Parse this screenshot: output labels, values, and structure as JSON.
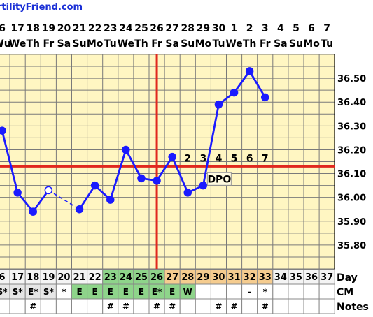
{
  "site": "rtilityFriend.com",
  "chart_data": {
    "type": "line",
    "ylim": [
      35.7,
      36.6
    ],
    "yticks": [
      "35.80",
      "35.90",
      "36.00",
      "36.10",
      "36.20",
      "36.30",
      "36.40",
      "36.50"
    ],
    "dates": [
      "6",
      "17",
      "18",
      "19",
      "20",
      "21",
      "22",
      "23",
      "24",
      "25",
      "26",
      "27",
      "28",
      "29",
      "30",
      "1",
      "2",
      "3",
      "4",
      "5",
      "6",
      "7"
    ],
    "weekdays": [
      "Wu",
      "We",
      "Th",
      "Fr",
      "Sa",
      "Su",
      "Mo",
      "Tu",
      "We",
      "Th",
      "Fr",
      "Sa",
      "Su",
      "Mo",
      "Tu",
      "We",
      "Th",
      "Fr",
      "Sa",
      "Su",
      "Mo",
      "Tu"
    ],
    "cycle_days": [
      "6",
      "17",
      "18",
      "19",
      "20",
      "21",
      "22",
      "23",
      "24",
      "25",
      "26",
      "27",
      "28",
      "29",
      "30",
      "31",
      "32",
      "33",
      "34",
      "35",
      "36",
      "37"
    ],
    "cycle_day_label": "Day",
    "temps": [
      36.28,
      36.02,
      35.94,
      36.03,
      null,
      35.95,
      36.05,
      35.99,
      36.2,
      36.08,
      36.07,
      36.17,
      36.02,
      36.05,
      36.39,
      36.44,
      36.53,
      36.42,
      null,
      null,
      null,
      null
    ],
    "open_points": [
      3
    ],
    "dashed_segments": [
      [
        3,
        5
      ]
    ],
    "coverline": 36.13,
    "ovulation_index": 10,
    "dpo_numbers": [
      "2",
      "3",
      "4",
      "5",
      "6",
      "7"
    ],
    "dpo_start_index": 12,
    "dpo_label": "DPO",
    "cm_label": "CM",
    "cm": [
      "S*",
      "S*",
      "E*",
      "S*",
      "*",
      "E",
      "E",
      "E",
      "E",
      "E",
      "E*",
      "E",
      "W",
      "",
      "",
      "",
      "-",
      "*",
      "",
      "",
      "",
      ""
    ],
    "notes_label": "Notes",
    "notes": [
      "",
      "",
      "#",
      "",
      "",
      "",
      "",
      "#",
      "#",
      "",
      "#",
      "#",
      "",
      "",
      "#",
      "#",
      "",
      "#",
      "",
      "",
      "",
      ""
    ],
    "colors": {
      "grid_bg": "#fff6c2",
      "grid_line": "#7a7a7a",
      "temp_line": "#1a1aff",
      "coverline": "#e0281e",
      "fertile": "#8ed48a",
      "luteal": "#f5cc8f",
      "default_cell": "#f4f4f4",
      "site_text": "#1a2fd6"
    }
  }
}
